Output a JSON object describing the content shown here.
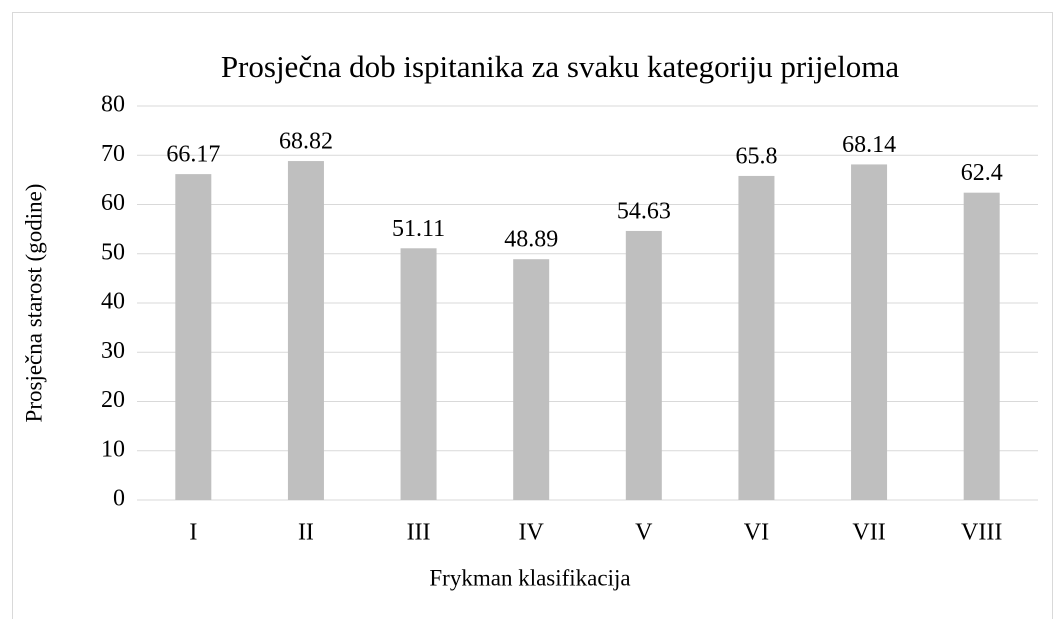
{
  "chart_data": {
    "type": "bar",
    "title": "Prosječna dob ispitanika za svaku kategoriju prijeloma",
    "x_label": "Frykman klasifikacija",
    "y_label": "Prosječna starost (godine)",
    "categories": [
      "I",
      "II",
      "III",
      "IV",
      "V",
      "VI",
      "VII",
      "VIII"
    ],
    "values": [
      66.17,
      68.82,
      51.11,
      48.89,
      54.63,
      65.8,
      68.14,
      62.4
    ],
    "color": "#bfbfbf",
    "ylim": [
      0,
      80
    ],
    "yticks": [
      0,
      10,
      20,
      30,
      40,
      50,
      60,
      70,
      80
    ],
    "grid": true
  }
}
